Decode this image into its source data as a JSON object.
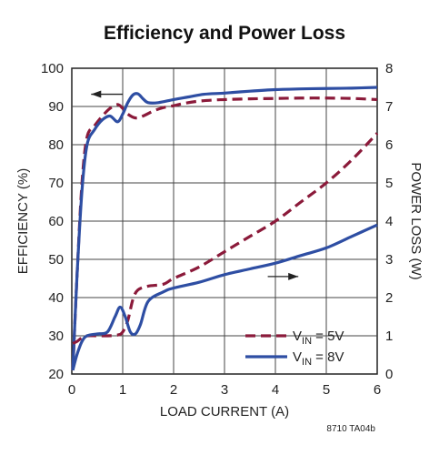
{
  "chart_data": {
    "type": "line",
    "title": "Efficiency and Power Loss",
    "xlabel": "LOAD CURRENT (A)",
    "ylabel_left": "EFFICIENCY (%)",
    "ylabel_right": "POWER LOSS (W)",
    "xlim": [
      0,
      6
    ],
    "ylim_left": [
      20,
      100
    ],
    "ylim_right": [
      0,
      8
    ],
    "x_ticks": [
      "0",
      "1",
      "2",
      "3",
      "4",
      "5",
      "6"
    ],
    "y_ticks_left": [
      "20",
      "30",
      "40",
      "50",
      "60",
      "70",
      "80",
      "90",
      "100"
    ],
    "y_ticks_right": [
      "0",
      "1",
      "2",
      "3",
      "4",
      "5",
      "6",
      "7",
      "8"
    ],
    "grid": true,
    "legend_position": "bottom-right",
    "footnote": "8710 TA04b",
    "legend": [
      {
        "prefix": "V",
        "sub": "IN",
        "suffix": " = 5V",
        "color": "#8b1a3a",
        "dash": true
      },
      {
        "prefix": "V",
        "sub": "IN",
        "suffix": " = 8V",
        "color": "#2e4ea3",
        "dash": false
      }
    ],
    "series": [
      {
        "name": "VIN = 5V",
        "quantity": "efficiency",
        "axis": "left",
        "color": "#8b1a3a",
        "dash": true,
        "x": [
          0.02,
          0.1,
          0.2,
          0.3,
          0.45,
          0.6,
          0.75,
          0.9,
          1.0,
          1.1,
          1.25,
          1.4,
          1.6,
          1.8,
          2.0,
          2.2,
          2.5,
          2.8,
          3.0,
          3.5,
          4.0,
          4.5,
          5.0,
          5.5,
          6.0
        ],
        "y": [
          21,
          45,
          70,
          82,
          85,
          87.5,
          89.5,
          90.5,
          89.5,
          88,
          87,
          87.5,
          88.8,
          89.7,
          90.2,
          90.8,
          91.4,
          91.7,
          91.8,
          92.0,
          92.1,
          92.2,
          92.2,
          92.1,
          91.8
        ]
      },
      {
        "name": "VIN = 8V",
        "quantity": "efficiency",
        "axis": "left",
        "color": "#2e4ea3",
        "dash": false,
        "x": [
          0.02,
          0.1,
          0.2,
          0.3,
          0.45,
          0.6,
          0.75,
          0.9,
          1.0,
          1.1,
          1.2,
          1.3,
          1.4,
          1.5,
          1.7,
          2.0,
          2.3,
          2.6,
          3.0,
          3.5,
          4.0,
          4.5,
          5.0,
          5.5,
          6.0
        ],
        "y": [
          21,
          45,
          68,
          80,
          84,
          86.5,
          87.5,
          86,
          88,
          91,
          93,
          93.3,
          92,
          91,
          91,
          91.8,
          92.5,
          93.2,
          93.5,
          94,
          94.4,
          94.6,
          94.7,
          94.8,
          95
        ]
      },
      {
        "name": "VIN = 5V",
        "quantity": "power loss",
        "axis": "right",
        "color": "#8b1a3a",
        "dash": true,
        "x": [
          0.02,
          0.1,
          0.2,
          0.3,
          0.5,
          0.7,
          0.9,
          1.0,
          1.1,
          1.2,
          1.3,
          1.5,
          1.8,
          2.0,
          2.5,
          3.0,
          3.5,
          4.0,
          4.5,
          5.0,
          5.5,
          6.0
        ],
        "y": [
          0.8,
          0.85,
          0.95,
          1.0,
          1.0,
          1.0,
          1.02,
          1.1,
          1.4,
          1.95,
          2.2,
          2.3,
          2.35,
          2.5,
          2.8,
          3.2,
          3.6,
          4.0,
          4.5,
          5.0,
          5.6,
          6.3
        ]
      },
      {
        "name": "VIN = 8V",
        "quantity": "power loss",
        "axis": "right",
        "color": "#2e4ea3",
        "dash": false,
        "x": [
          0.02,
          0.1,
          0.2,
          0.3,
          0.5,
          0.7,
          0.85,
          0.95,
          1.05,
          1.15,
          1.25,
          1.35,
          1.5,
          1.8,
          2.0,
          2.5,
          3.0,
          3.5,
          4.0,
          4.5,
          5.0,
          5.5,
          6.0
        ],
        "y": [
          0.1,
          0.5,
          0.85,
          1.0,
          1.05,
          1.1,
          1.5,
          1.75,
          1.5,
          1.1,
          1.05,
          1.3,
          1.9,
          2.15,
          2.25,
          2.4,
          2.6,
          2.75,
          2.9,
          3.1,
          3.3,
          3.6,
          3.9
        ]
      }
    ],
    "arrows": [
      {
        "direction": "left",
        "series": "efficiency"
      },
      {
        "direction": "right",
        "series": "power loss"
      }
    ]
  }
}
